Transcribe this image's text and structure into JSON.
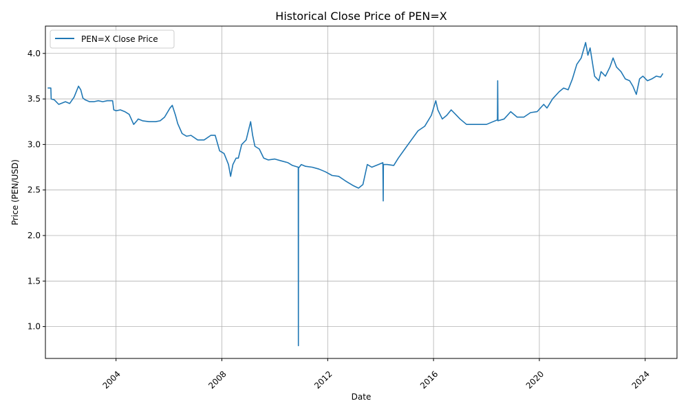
{
  "chart_data": {
    "type": "line",
    "title": "Historical Close Price of PEN=X",
    "xlabel": "Date",
    "ylabel": "Price (PEN/USD)",
    "x_ticks": [
      "2004",
      "2008",
      "2012",
      "2016",
      "2020",
      "2024"
    ],
    "y_ticks": [
      "1.0",
      "1.5",
      "2.0",
      "2.5",
      "3.0",
      "3.5",
      "4.0"
    ],
    "xlim": [
      "2001-05-01",
      "2025-03-15"
    ],
    "ylim": [
      0.65,
      4.3
    ],
    "grid": true,
    "legend": "upper-left",
    "series": [
      {
        "name": "PEN=X Close Price",
        "color": "#1f77b4",
        "x": [
          "2001-06-01",
          "2001-07-15",
          "2001-07-20",
          "2001-09-01",
          "2001-11-01",
          "2002-02-01",
          "2002-04-01",
          "2002-06-01",
          "2002-08-01",
          "2002-09-01",
          "2002-10-01",
          "2002-11-01",
          "2003-01-01",
          "2003-03-01",
          "2003-05-01",
          "2003-07-01",
          "2003-09-01",
          "2003-11-15",
          "2003-12-01",
          "2004-01-01",
          "2004-03-01",
          "2004-05-01",
          "2004-07-01",
          "2004-09-01",
          "2004-10-15",
          "2004-11-01",
          "2005-01-01",
          "2005-04-01",
          "2005-07-01",
          "2005-09-01",
          "2005-11-01",
          "2006-01-15",
          "2006-02-15",
          "2006-04-01",
          "2006-05-01",
          "2006-07-01",
          "2006-09-01",
          "2006-11-01",
          "2007-02-01",
          "2007-05-01",
          "2007-08-01",
          "2007-10-01",
          "2007-12-01",
          "2008-02-01",
          "2008-04-01",
          "2008-05-01",
          "2008-06-01",
          "2008-07-15",
          "2008-08-15",
          "2008-10-01",
          "2008-12-01",
          "2009-02-01",
          "2009-03-01",
          "2009-04-01",
          "2009-06-01",
          "2009-08-01",
          "2009-10-01",
          "2010-01-01",
          "2010-04-01",
          "2010-07-01",
          "2010-09-01",
          "2010-11-20",
          "2010-11-22",
          "2010-11-24",
          "2011-01-01",
          "2011-03-01",
          "2011-06-01",
          "2011-09-01",
          "2011-12-01",
          "2012-03-01",
          "2012-06-01",
          "2012-09-01",
          "2012-12-15",
          "2013-03-01",
          "2013-05-01",
          "2013-07-01",
          "2013-09-01",
          "2013-12-01",
          "2014-02-01",
          "2014-02-05",
          "2014-02-08",
          "2014-04-01",
          "2014-07-01",
          "2014-09-01",
          "2014-12-01",
          "2015-03-01",
          "2015-06-01",
          "2015-09-01",
          "2015-12-01",
          "2016-02-01",
          "2016-03-01",
          "2016-05-01",
          "2016-07-01",
          "2016-09-01",
          "2016-11-01",
          "2017-01-01",
          "2017-04-01",
          "2017-07-01",
          "2017-10-01",
          "2018-01-01",
          "2018-04-01",
          "2018-06-01",
          "2018-06-05",
          "2018-06-09",
          "2018-09-01",
          "2018-12-01",
          "2019-03-01",
          "2019-06-01",
          "2019-09-01",
          "2019-12-01",
          "2020-03-01",
          "2020-04-15",
          "2020-05-01",
          "2020-07-01",
          "2020-10-01",
          "2020-12-01",
          "2021-02-01",
          "2021-04-01",
          "2021-06-01",
          "2021-08-01",
          "2021-10-01",
          "2021-11-01",
          "2021-12-01",
          "2022-02-01",
          "2022-04-01",
          "2022-05-01",
          "2022-07-01",
          "2022-09-01",
          "2022-10-15",
          "2022-12-01",
          "2023-02-01",
          "2023-04-01",
          "2023-06-01",
          "2023-07-15",
          "2023-09-01",
          "2023-10-15",
          "2023-12-01",
          "2024-02-01",
          "2024-04-01",
          "2024-06-01",
          "2024-08-01",
          "2024-09-01"
        ],
        "values": [
          3.62,
          3.62,
          3.5,
          3.49,
          3.44,
          3.47,
          3.45,
          3.52,
          3.64,
          3.6,
          3.51,
          3.49,
          3.47,
          3.47,
          3.48,
          3.47,
          3.48,
          3.48,
          3.38,
          3.37,
          3.38,
          3.36,
          3.33,
          3.22,
          3.26,
          3.28,
          3.26,
          3.25,
          3.25,
          3.26,
          3.3,
          3.4,
          3.43,
          3.32,
          3.23,
          3.12,
          3.09,
          3.1,
          3.05,
          3.05,
          3.1,
          3.1,
          2.93,
          2.9,
          2.78,
          2.65,
          2.78,
          2.85,
          2.85,
          3.0,
          3.05,
          3.25,
          3.1,
          2.98,
          2.95,
          2.85,
          2.83,
          2.84,
          2.82,
          2.8,
          2.77,
          2.75,
          0.79,
          2.74,
          2.78,
          2.76,
          2.75,
          2.73,
          2.7,
          2.66,
          2.65,
          2.6,
          2.55,
          2.52,
          2.56,
          2.78,
          2.75,
          2.78,
          2.8,
          2.38,
          2.78,
          2.78,
          2.77,
          2.85,
          2.95,
          3.05,
          3.15,
          3.2,
          3.32,
          3.48,
          3.38,
          3.28,
          3.32,
          3.38,
          3.33,
          3.28,
          3.22,
          3.22,
          3.22,
          3.22,
          3.25,
          3.27,
          3.7,
          3.26,
          3.28,
          3.36,
          3.3,
          3.3,
          3.35,
          3.36,
          3.44,
          3.4,
          3.42,
          3.5,
          3.58,
          3.62,
          3.6,
          3.72,
          3.88,
          3.95,
          4.12,
          3.98,
          4.06,
          3.75,
          3.7,
          3.8,
          3.75,
          3.85,
          3.95,
          3.85,
          3.8,
          3.72,
          3.7,
          3.64,
          3.55,
          3.72,
          3.75,
          3.7,
          3.72,
          3.75,
          3.74,
          3.78
        ]
      }
    ]
  }
}
